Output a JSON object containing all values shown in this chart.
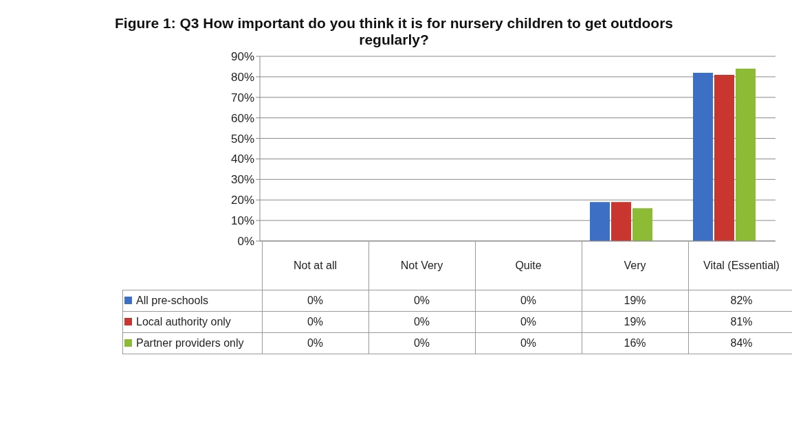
{
  "chart_data": {
    "type": "bar",
    "title": "Figure 1: Q3 How important do you think it is for nursery children to get outdoors regularly?",
    "categories": [
      "Not at all",
      "Not Very",
      "Quite",
      "Very",
      "Vital (Essential)"
    ],
    "series": [
      {
        "name": "All pre-schools",
        "color": "#3d6fc4",
        "values": [
          0,
          0,
          0,
          19,
          82
        ],
        "value_labels": [
          "0%",
          "0%",
          "0%",
          "19%",
          "82%"
        ]
      },
      {
        "name": "Local authority only",
        "color": "#c8362f",
        "values": [
          0,
          0,
          0,
          19,
          81
        ],
        "value_labels": [
          "0%",
          "0%",
          "0%",
          "19%",
          "81%"
        ]
      },
      {
        "name": "Partner providers only",
        "color": "#8dbb35",
        "values": [
          0,
          0,
          0,
          16,
          84
        ],
        "value_labels": [
          "0%",
          "0%",
          "0%",
          "16%",
          "84%"
        ]
      }
    ],
    "ylim": [
      0,
      90
    ],
    "yticks": [
      {
        "value": 0,
        "label": "0%"
      },
      {
        "value": 10,
        "label": "10%"
      },
      {
        "value": 20,
        "label": "20%"
      },
      {
        "value": 30,
        "label": "30%"
      },
      {
        "value": 40,
        "label": "40%"
      },
      {
        "value": 50,
        "label": "50%"
      },
      {
        "value": 60,
        "label": "60%"
      },
      {
        "value": 70,
        "label": "70%"
      },
      {
        "value": 80,
        "label": "80%"
      },
      {
        "value": 90,
        "label": "90%"
      }
    ],
    "grid": "y",
    "legend": "bottom"
  }
}
